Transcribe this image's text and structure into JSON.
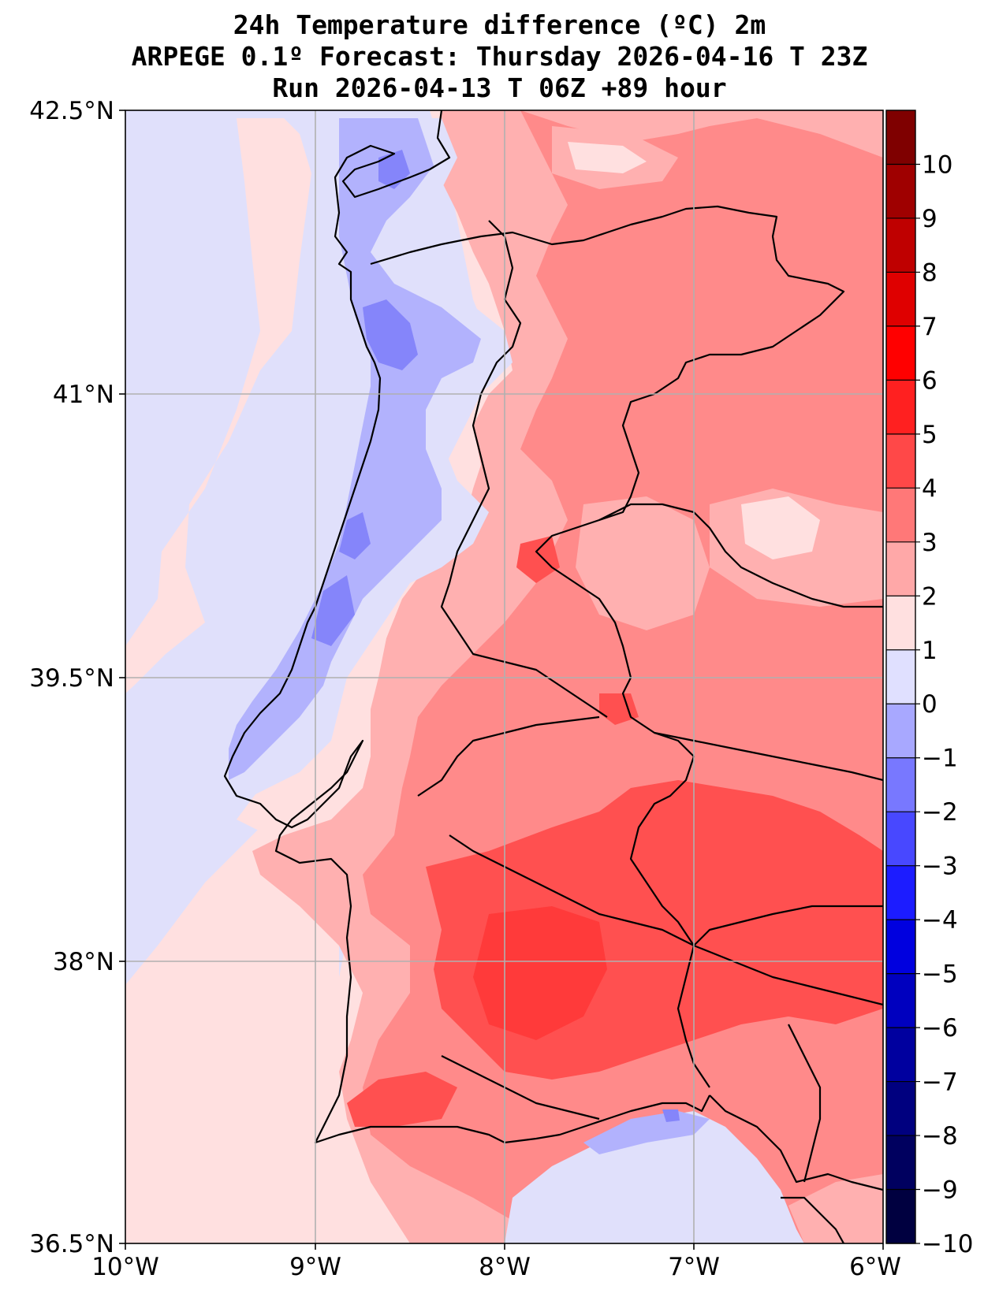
{
  "title": {
    "line1": "24h Temperature difference (ºC) 2m",
    "line2": "ARPEGE 0.1º Forecast: Thursday 2026-04-16 T 23Z",
    "line3": "Run 2026-04-13 T 06Z +89 hour"
  },
  "axes": {
    "lat_ticks": [
      "42.5°N",
      "41°N",
      "39.5°N",
      "38°N",
      "36.5°N"
    ],
    "lon_ticks": [
      "10°W",
      "9°W",
      "8°W",
      "7°W",
      "6°W"
    ]
  },
  "colorbar": {
    "ticks": [
      "10",
      "9",
      "8",
      "7",
      "6",
      "5",
      "4",
      "3",
      "2",
      "1",
      "0",
      "−1",
      "−2",
      "−3",
      "−4",
      "−5",
      "−6",
      "−7",
      "−8",
      "−9",
      "−10"
    ],
    "colors": [
      "#7f0000",
      "#9f0000",
      "#bf0000",
      "#df0000",
      "#ff0000",
      "#ff2020",
      "#ff4848",
      "#ff7878",
      "#ffa8a8",
      "#ffe0e0",
      "#e0e0ff",
      "#a8a8ff",
      "#7878ff",
      "#4848ff",
      "#1c1cff",
      "#0000df",
      "#0000bf",
      "#00009f",
      "#00007f",
      "#00005f",
      "#000040"
    ]
  },
  "map_colors": {
    "neg1": "#e0e0fb",
    "neg2": "#b2b2fd",
    "neg3": "#8585fa",
    "pos1": "#ffe0e0",
    "pos2": "#ffb0b0",
    "pos3": "#ff8a8a",
    "pos4": "#ff5050",
    "pos5": "#ff3a3a"
  }
}
